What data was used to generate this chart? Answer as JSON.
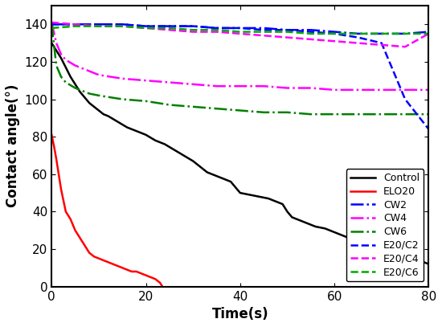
{
  "title": "",
  "xlabel": "Time(s)",
  "ylabel": "Contact angle(°)",
  "xlim": [
    0,
    80
  ],
  "ylim": [
    0,
    150
  ],
  "xticks": [
    0,
    20,
    40,
    60,
    80
  ],
  "yticks": [
    0,
    20,
    40,
    60,
    80,
    100,
    120,
    140
  ],
  "series": [
    {
      "label": "Control",
      "color": "#000000",
      "linestyle": "solid",
      "linewidth": 1.8,
      "x": [
        0,
        1,
        2,
        3,
        4,
        5,
        6,
        7,
        8,
        9,
        10,
        11,
        12,
        14,
        16,
        18,
        20,
        22,
        24,
        26,
        28,
        30,
        32,
        33,
        34,
        35,
        36,
        38,
        40,
        42,
        44,
        46,
        47,
        48,
        49,
        50,
        51,
        52,
        54,
        56,
        58,
        60,
        62,
        64,
        66,
        68,
        70,
        72,
        74,
        76,
        78,
        80
      ],
      "y": [
        130,
        126,
        122,
        117,
        112,
        108,
        104,
        101,
        98,
        96,
        94,
        92,
        91,
        88,
        85,
        83,
        81,
        78,
        76,
        73,
        70,
        67,
        63,
        61,
        60,
        59,
        58,
        56,
        50,
        49,
        48,
        47,
        46,
        45,
        44,
        40,
        37,
        36,
        34,
        32,
        31,
        29,
        27,
        25,
        24,
        22,
        21,
        20,
        19,
        17,
        14,
        12
      ]
    },
    {
      "label": "ELO20",
      "color": "#ff0000",
      "linestyle": "solid",
      "linewidth": 1.8,
      "x": [
        0,
        0.5,
        1,
        1.5,
        2,
        2.5,
        3,
        4,
        5,
        6,
        7,
        8,
        9,
        10,
        11,
        12,
        13,
        14,
        15,
        16,
        17,
        18,
        19,
        20,
        21,
        22,
        23,
        23.5
      ],
      "y": [
        81,
        75,
        68,
        60,
        52,
        46,
        40,
        36,
        30,
        26,
        22,
        18,
        16,
        15,
        14,
        13,
        12,
        11,
        10,
        9,
        8,
        8,
        7,
        6,
        5,
        4,
        2,
        0
      ]
    },
    {
      "label": "CW2",
      "color": "#0000ff",
      "linestyle": "dashdot",
      "linewidth": 1.8,
      "x": [
        0,
        2,
        5,
        10,
        15,
        20,
        25,
        30,
        35,
        40,
        45,
        50,
        55,
        60,
        65,
        70,
        75,
        80
      ],
      "y": [
        140,
        140,
        140,
        140,
        140,
        139,
        139,
        139,
        138,
        138,
        138,
        137,
        137,
        136,
        135,
        135,
        135,
        136
      ]
    },
    {
      "label": "CW4",
      "color": "#ff00ff",
      "linestyle": "dashdot",
      "linewidth": 1.8,
      "x": [
        0,
        1,
        2,
        3,
        5,
        8,
        10,
        15,
        20,
        25,
        30,
        35,
        40,
        45,
        50,
        55,
        60,
        65,
        70,
        75,
        80
      ],
      "y": [
        141,
        130,
        124,
        121,
        118,
        115,
        113,
        111,
        110,
        109,
        108,
        107,
        107,
        107,
        106,
        106,
        105,
        105,
        105,
        105,
        105
      ]
    },
    {
      "label": "CW6",
      "color": "#008000",
      "linestyle": "dashdot",
      "linewidth": 1.8,
      "x": [
        0,
        1,
        2,
        3,
        5,
        8,
        10,
        15,
        20,
        25,
        30,
        35,
        40,
        45,
        50,
        55,
        60,
        65,
        70,
        75,
        80
      ],
      "y": [
        140,
        118,
        112,
        109,
        106,
        103,
        102,
        100,
        99,
        97,
        96,
        95,
        94,
        93,
        93,
        92,
        92,
        92,
        92,
        92,
        92
      ]
    },
    {
      "label": "E20/C2",
      "color": "#0000ff",
      "linestyle": "dashed",
      "linewidth": 1.8,
      "x": [
        0,
        5,
        10,
        15,
        20,
        25,
        30,
        35,
        40,
        45,
        50,
        55,
        60,
        65,
        70,
        75,
        80
      ],
      "y": [
        140,
        140,
        140,
        140,
        139,
        139,
        139,
        138,
        138,
        137,
        137,
        136,
        135,
        133,
        130,
        100,
        84
      ]
    },
    {
      "label": "E20/C4",
      "color": "#ff00ff",
      "linestyle": "dashed",
      "linewidth": 1.8,
      "x": [
        0,
        5,
        10,
        15,
        20,
        25,
        30,
        35,
        40,
        45,
        50,
        55,
        60,
        65,
        70,
        75,
        80
      ],
      "y": [
        141,
        140,
        139,
        139,
        138,
        137,
        136,
        136,
        135,
        134,
        133,
        132,
        131,
        130,
        129,
        128,
        135
      ]
    },
    {
      "label": "E20/C6",
      "color": "#00aa00",
      "linestyle": "dashed",
      "linewidth": 1.8,
      "x": [
        0,
        5,
        10,
        15,
        20,
        25,
        30,
        35,
        40,
        45,
        50,
        55,
        60,
        65,
        70,
        75,
        80
      ],
      "y": [
        138,
        139,
        139,
        139,
        138,
        138,
        137,
        137,
        136,
        136,
        136,
        135,
        135,
        135,
        135,
        135,
        135
      ]
    }
  ],
  "legend_loc": "lower right",
  "fontsize_axis_label": 12,
  "fontsize_tick": 11,
  "fontsize_legend": 9
}
